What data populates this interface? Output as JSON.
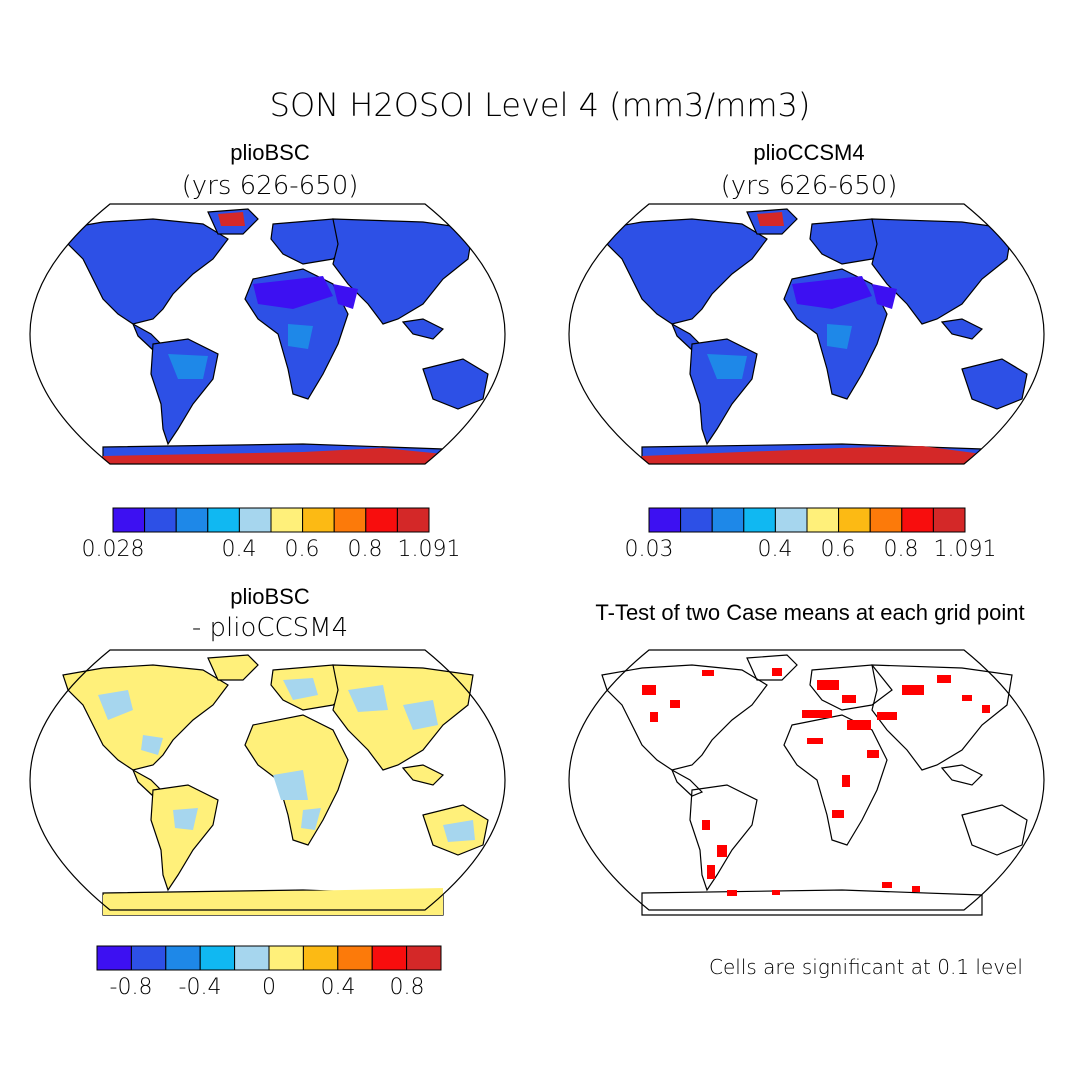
{
  "figure": {
    "title": "SON H2OSOI Level 4 (mm3/mm3)",
    "footnote": "Cells are significant at 0.1 level"
  },
  "colors": {
    "scale": [
      "#3d10f2",
      "#2d50e6",
      "#1e88e8",
      "#10b8f2",
      "#a6d6ee",
      "#fff07a",
      "#fcba14",
      "#fc7a0a",
      "#f80d0d",
      "#d42828"
    ],
    "ocean": "#ffffff",
    "outline": "#000000",
    "significant": "#ff0000"
  },
  "panels": [
    {
      "id": "top-left",
      "title": "plioBSC",
      "subtitle": "(yrs 626-650)",
      "colorbar": {
        "labels": [
          "0.028",
          "0.4",
          "0.6",
          "0.8",
          "1.091"
        ]
      }
    },
    {
      "id": "top-right",
      "title": "plioCCSM4",
      "subtitle": "(yrs 626-650)",
      "colorbar": {
        "labels": [
          "0.03",
          "0.4",
          "0.6",
          "0.8",
          "1.091"
        ]
      }
    },
    {
      "id": "bottom-left",
      "title": "plioBSC",
      "subtitle": "- plioCCSM4",
      "colorbar": {
        "labels": [
          "-0.8",
          "-0.4",
          "0",
          "0.4",
          "0.8"
        ]
      }
    },
    {
      "id": "bottom-right",
      "title": "T-Test of two Case means at each grid point"
    }
  ]
}
